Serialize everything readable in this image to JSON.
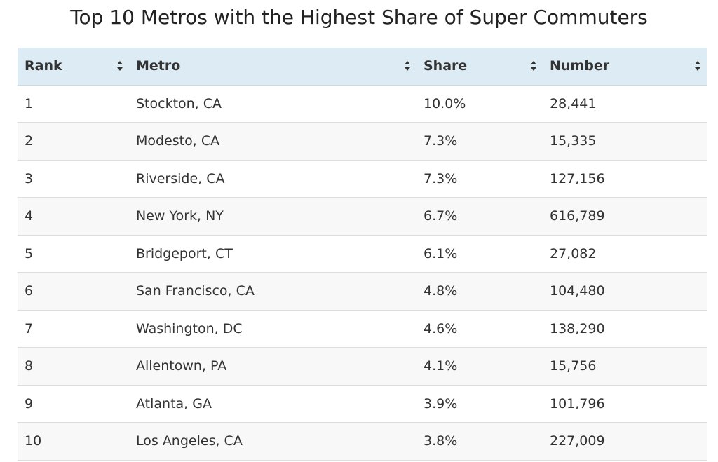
{
  "title": "Top 10 Metros with the Highest Share of Super Commuters",
  "table": {
    "columns": [
      {
        "label": "Rank",
        "sort_icon": "sort-icon"
      },
      {
        "label": "Metro",
        "sort_icon": "sort-icon"
      },
      {
        "label": "Share",
        "sort_icon": "sort-icon"
      },
      {
        "label": "Number",
        "sort_icon": "sort-icon"
      }
    ],
    "rows": [
      {
        "rank": "1",
        "metro": "Stockton, CA",
        "share": "10.0%",
        "number": "28,441"
      },
      {
        "rank": "2",
        "metro": "Modesto, CA",
        "share": "7.3%",
        "number": "15,335"
      },
      {
        "rank": "3",
        "metro": "Riverside, CA",
        "share": "7.3%",
        "number": "127,156"
      },
      {
        "rank": "4",
        "metro": "New York, NY",
        "share": "6.7%",
        "number": "616,789"
      },
      {
        "rank": "5",
        "metro": "Bridgeport, CT",
        "share": "6.1%",
        "number": "27,082"
      },
      {
        "rank": "6",
        "metro": "San Francisco, CA",
        "share": "4.8%",
        "number": "104,480"
      },
      {
        "rank": "7",
        "metro": "Washington, DC",
        "share": "4.6%",
        "number": "138,290"
      },
      {
        "rank": "8",
        "metro": "Allentown, PA",
        "share": "4.1%",
        "number": "15,756"
      },
      {
        "rank": "9",
        "metro": "Atlanta, GA",
        "share": "3.9%",
        "number": "101,796"
      },
      {
        "rank": "10",
        "metro": "Los Angeles, CA",
        "share": "3.8%",
        "number": "227,009"
      }
    ]
  },
  "colors": {
    "header_bg": "#dcebf4",
    "row_alt_bg": "#f8f8f8",
    "text": "#333333",
    "title": "#222222"
  }
}
